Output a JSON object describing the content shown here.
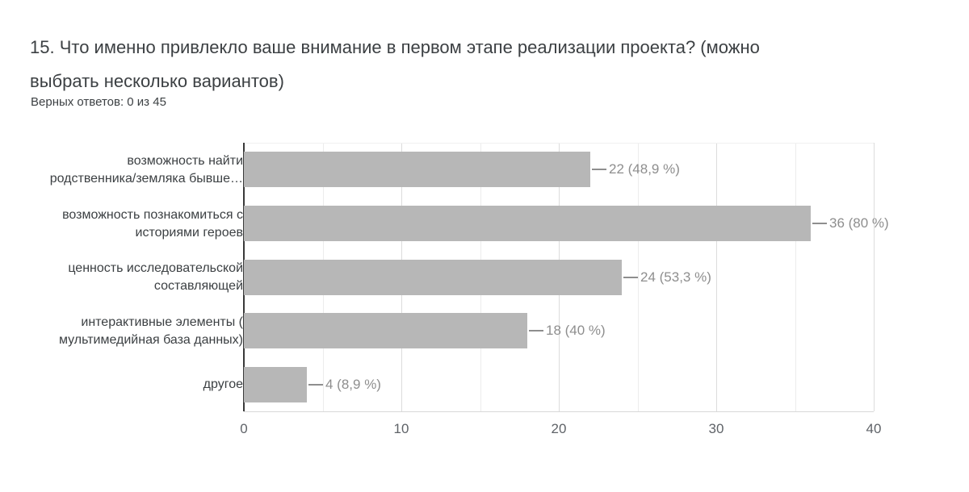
{
  "question": {
    "title": "15. Что именно привлекло ваше внимание в первом этапе реализации проекта? (можно выбрать несколько вариантов)",
    "title_lines": [
      "15. Что именно привлекло ваше внимание в первом этапе реализации проекта? (можно",
      "выбрать несколько вариантов)"
    ],
    "subtitle": "Верных ответов: 0 из 45"
  },
  "chart_data": {
    "type": "bar",
    "orientation": "horizontal",
    "title": "15. Что именно привлекло ваше внимание в первом этапе реализации проекта? (можно выбрать несколько вариантов)",
    "categories": [
      "возможность найти родственника/земляка бывше…",
      "возможность познакомиться с историями героев",
      "ценность исследовательской составляющей",
      "интерактивные элементы ( мультимедийная база данных)",
      "другое"
    ],
    "category_label_lines": [
      [
        "возможность найти",
        "родственника/земляка бывше…"
      ],
      [
        "возможность познакомиться с",
        "историями героев"
      ],
      [
        "ценность исследовательской",
        "составляющей"
      ],
      [
        "интерактивные элементы (",
        "мультимедийная база данных)"
      ],
      [
        "другое"
      ]
    ],
    "values": [
      22,
      36,
      24,
      18,
      4
    ],
    "percentages": [
      48.9,
      80,
      53.3,
      40,
      8.9
    ],
    "value_labels": [
      "22 (48,9 %)",
      "36 (80 %)",
      "24 (53,3 %)",
      "18 (40 %)",
      "4 (8,9 %)"
    ],
    "xlabel": "",
    "ylabel": "",
    "axis": {
      "min": 0,
      "max": 40,
      "ticks": [
        0,
        10,
        20,
        30,
        40
      ],
      "minor_step": 5
    },
    "grid": "on",
    "legend": "none",
    "colors": {
      "bar": "#b7b7b7",
      "gridline_major": "#dcdcdc",
      "gridline_minor": "#ececec",
      "zero_axis": "#3a3a3a",
      "value_label": "#8e8e8e",
      "tick_label": "#5f6368",
      "category_label": "#3c4043",
      "background": "#ffffff"
    }
  }
}
